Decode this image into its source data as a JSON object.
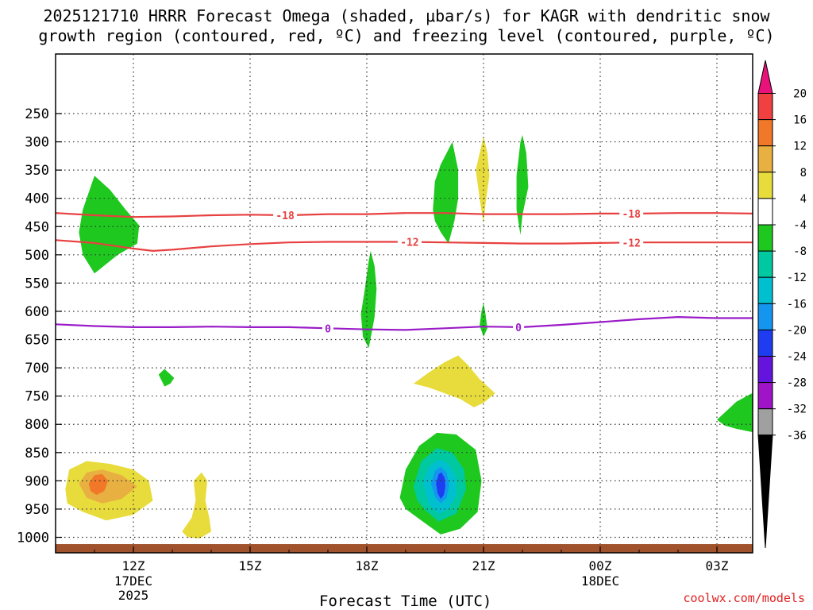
{
  "title": {
    "line1": "2025121710 HRRR Forecast Omega (shaded, μbar/s) for KAGR with dendritic snow",
    "line2": "growth region (contoured, red, ºC) and freezing level (contoured, purple, ºC)"
  },
  "credit": "coolwx.com/models",
  "chart_data": {
    "type": "heatmap",
    "title": "2025121710 HRRR Forecast Omega (shaded, μbar/s) for KAGR with dendritic snow growth region (contoured, red, ºC) and freezing level (contoured, purple, ºC)",
    "xlabel": "Forecast Time (UTC)",
    "ylabel": "",
    "x_unit": "hours since 2025-12-17 10Z",
    "xlim": [
      0.0,
      18.0
    ],
    "ylim": [
      1040,
      180
    ],
    "grid": true,
    "x_ticks": [
      {
        "x": 2,
        "label": "12Z",
        "sub1": "17DEC",
        "sub2": "2025"
      },
      {
        "x": 5,
        "label": "15Z",
        "sub1": "",
        "sub2": ""
      },
      {
        "x": 8,
        "label": "18Z",
        "sub1": "",
        "sub2": ""
      },
      {
        "x": 11,
        "label": "21Z",
        "sub1": "",
        "sub2": ""
      },
      {
        "x": 14,
        "label": "00Z",
        "sub1": "18DEC",
        "sub2": ""
      },
      {
        "x": 17,
        "label": "03Z",
        "sub1": "",
        "sub2": ""
      }
    ],
    "y_ticks": [
      250,
      300,
      350,
      400,
      450,
      500,
      550,
      600,
      650,
      700,
      750,
      800,
      850,
      900,
      950,
      1000
    ],
    "colorbar": {
      "labels": [
        "20",
        "16",
        "12",
        "8",
        "4",
        "-4",
        "-8",
        "-12",
        "-16",
        "-20",
        "-24",
        "-28",
        "-32",
        "-36"
      ],
      "bins": [
        {
          "lo": 20,
          "hi": null,
          "color": "#e8127a"
        },
        {
          "lo": 16,
          "hi": 20,
          "color": "#f04040"
        },
        {
          "lo": 12,
          "hi": 16,
          "color": "#f07828"
        },
        {
          "lo": 8,
          "hi": 12,
          "color": "#e8b040"
        },
        {
          "lo": 4,
          "hi": 8,
          "color": "#e8dc3c"
        },
        {
          "lo": -4,
          "hi": 4,
          "color": "#ffffff"
        },
        {
          "lo": -8,
          "hi": -4,
          "color": "#1ec81e"
        },
        {
          "lo": -12,
          "hi": -8,
          "color": "#00c8a0"
        },
        {
          "lo": -16,
          "hi": -12,
          "color": "#00c0d0"
        },
        {
          "lo": -20,
          "hi": -16,
          "color": "#1496f0"
        },
        {
          "lo": -24,
          "hi": -20,
          "color": "#1e3cf0"
        },
        {
          "lo": -28,
          "hi": -24,
          "color": "#6414dc"
        },
        {
          "lo": -32,
          "hi": -28,
          "color": "#a014c8"
        },
        {
          "lo": -36,
          "hi": -32,
          "color": "#a0a0a0"
        },
        {
          "lo": null,
          "hi": -36,
          "color": "#000000"
        }
      ]
    },
    "contours": [
      {
        "name": "-18",
        "color": "#e84040",
        "label": "-18",
        "label_x": [
          5.9,
          14.8
        ],
        "points": [
          [
            0,
            426
          ],
          [
            1,
            430
          ],
          [
            2,
            433
          ],
          [
            3,
            432
          ],
          [
            4,
            430
          ],
          [
            5,
            429
          ],
          [
            6,
            430
          ],
          [
            7,
            428
          ],
          [
            8,
            428
          ],
          [
            9,
            426
          ],
          [
            10,
            426
          ],
          [
            11,
            428
          ],
          [
            12,
            428
          ],
          [
            13,
            428
          ],
          [
            14,
            427
          ],
          [
            15,
            427
          ],
          [
            16,
            426
          ],
          [
            17,
            426
          ],
          [
            18,
            427
          ]
        ]
      },
      {
        "name": "-12",
        "color": "#e84040",
        "label": "-12",
        "label_x": [
          9.1,
          14.8
        ],
        "points": [
          [
            0,
            474
          ],
          [
            1,
            479
          ],
          [
            2,
            489
          ],
          [
            2.5,
            493
          ],
          [
            3,
            491
          ],
          [
            4,
            485
          ],
          [
            5,
            481
          ],
          [
            6,
            478
          ],
          [
            7,
            477
          ],
          [
            8,
            477
          ],
          [
            9,
            477
          ],
          [
            10,
            478
          ],
          [
            11,
            479
          ],
          [
            12,
            480
          ],
          [
            13,
            480
          ],
          [
            14,
            479
          ],
          [
            15,
            478
          ],
          [
            16,
            478
          ],
          [
            17,
            478
          ],
          [
            18,
            478
          ]
        ]
      },
      {
        "name": "0",
        "color": "#9a1bc8",
        "label": "0",
        "label_x": [
          7.0,
          11.9
        ],
        "points": [
          [
            0,
            623
          ],
          [
            1,
            626
          ],
          [
            2,
            628
          ],
          [
            3,
            628
          ],
          [
            4,
            627
          ],
          [
            5,
            628
          ],
          [
            6,
            628
          ],
          [
            7,
            630
          ],
          [
            8,
            632
          ],
          [
            9,
            633
          ],
          [
            10,
            630
          ],
          [
            11,
            627
          ],
          [
            12,
            628
          ],
          [
            13,
            624
          ],
          [
            14,
            619
          ],
          [
            15,
            614
          ],
          [
            15.5,
            612
          ],
          [
            16,
            610
          ],
          [
            17,
            612
          ],
          [
            18,
            612
          ]
        ]
      }
    ],
    "regions": [
      {
        "name": "green-1",
        "color": "#1ec81e",
        "points": [
          [
            1.0,
            360
          ],
          [
            1.4,
            385
          ],
          [
            1.8,
            420
          ],
          [
            2.15,
            448
          ],
          [
            2.1,
            480
          ],
          [
            1.6,
            500
          ],
          [
            1.0,
            533
          ],
          [
            0.7,
            500
          ],
          [
            0.6,
            460
          ],
          [
            0.7,
            420
          ],
          [
            0.9,
            380
          ]
        ]
      },
      {
        "name": "green-2",
        "color": "#1ec81e",
        "points": [
          [
            7.85,
            605
          ],
          [
            7.95,
            560
          ],
          [
            8.05,
            510
          ],
          [
            8.1,
            493
          ],
          [
            8.2,
            520
          ],
          [
            8.25,
            560
          ],
          [
            8.2,
            610
          ],
          [
            8.05,
            665
          ],
          [
            7.9,
            645
          ]
        ]
      },
      {
        "name": "green-3",
        "color": "#1ec81e",
        "points": [
          [
            9.7,
            420
          ],
          [
            9.75,
            370
          ],
          [
            9.9,
            340
          ],
          [
            10.2,
            300
          ],
          [
            10.35,
            350
          ],
          [
            10.35,
            400
          ],
          [
            10.25,
            440
          ],
          [
            10.1,
            480
          ],
          [
            9.9,
            460
          ],
          [
            9.75,
            440
          ]
        ]
      },
      {
        "name": "yellow-1",
        "color": "#e8dc3c",
        "points": [
          [
            10.8,
            350
          ],
          [
            10.9,
            320
          ],
          [
            11.0,
            290
          ],
          [
            11.1,
            320
          ],
          [
            11.15,
            360
          ],
          [
            11.05,
            410
          ],
          [
            11.0,
            445
          ],
          [
            10.9,
            400
          ]
        ]
      },
      {
        "name": "green-4",
        "color": "#1ec81e",
        "points": [
          [
            11.85,
            360
          ],
          [
            11.95,
            300
          ],
          [
            12.0,
            288
          ],
          [
            12.1,
            320
          ],
          [
            12.15,
            380
          ],
          [
            12.0,
            430
          ],
          [
            11.95,
            465
          ],
          [
            11.85,
            420
          ]
        ]
      },
      {
        "name": "green-5",
        "color": "#1ec81e",
        "points": [
          [
            10.9,
            625
          ],
          [
            10.95,
            600
          ],
          [
            11.0,
            585
          ],
          [
            11.05,
            605
          ],
          [
            11.1,
            630
          ],
          [
            11.0,
            645
          ]
        ]
      },
      {
        "name": "green-6",
        "color": "#1ec81e",
        "points": [
          [
            2.65,
            712
          ],
          [
            2.8,
            702
          ],
          [
            3.05,
            718
          ],
          [
            2.95,
            728
          ],
          [
            2.8,
            733
          ]
        ]
      },
      {
        "name": "yellow-2",
        "color": "#e8dc3c",
        "points": [
          [
            9.2,
            728
          ],
          [
            9.6,
            708
          ],
          [
            10.0,
            690
          ],
          [
            10.35,
            678
          ],
          [
            10.6,
            695
          ],
          [
            10.9,
            720
          ],
          [
            11.3,
            745
          ],
          [
            11.0,
            762
          ],
          [
            10.75,
            770
          ],
          [
            10.4,
            755
          ],
          [
            10.0,
            745
          ],
          [
            9.6,
            735
          ]
        ]
      },
      {
        "name": "green-7",
        "color": "#1ec81e",
        "points": [
          [
            17.0,
            792
          ],
          [
            17.5,
            760
          ],
          [
            17.9,
            745
          ],
          [
            18.0,
            745
          ],
          [
            18.0,
            815
          ],
          [
            17.5,
            808
          ],
          [
            17.2,
            802
          ]
        ]
      },
      {
        "name": "yellow-3",
        "color": "#e8dc3c",
        "points": [
          [
            0.25,
            915
          ],
          [
            0.35,
            880
          ],
          [
            0.8,
            865
          ],
          [
            1.4,
            870
          ],
          [
            2.0,
            880
          ],
          [
            2.4,
            900
          ],
          [
            2.5,
            935
          ],
          [
            2.0,
            960
          ],
          [
            1.3,
            970
          ],
          [
            0.7,
            955
          ],
          [
            0.3,
            940
          ]
        ]
      },
      {
        "name": "gold-1",
        "color": "#e8b040",
        "points": [
          [
            0.6,
            905
          ],
          [
            0.8,
            885
          ],
          [
            1.2,
            880
          ],
          [
            1.7,
            890
          ],
          [
            2.1,
            910
          ],
          [
            1.7,
            932
          ],
          [
            1.2,
            940
          ],
          [
            0.8,
            930
          ]
        ]
      },
      {
        "name": "orange-1",
        "color": "#f07828",
        "points": [
          [
            0.85,
            905
          ],
          [
            1.0,
            890
          ],
          [
            1.2,
            888
          ],
          [
            1.35,
            900
          ],
          [
            1.25,
            918
          ],
          [
            1.05,
            925
          ],
          [
            0.9,
            918
          ]
        ]
      },
      {
        "name": "yellow-4",
        "color": "#e8dc3c",
        "points": [
          [
            3.25,
            990
          ],
          [
            3.5,
            965
          ],
          [
            3.6,
            935
          ],
          [
            3.55,
            900
          ],
          [
            3.75,
            885
          ],
          [
            3.9,
            900
          ],
          [
            3.85,
            935
          ],
          [
            3.95,
            965
          ],
          [
            4.0,
            990
          ],
          [
            3.7,
            1002
          ],
          [
            3.4,
            1000
          ]
        ]
      },
      {
        "name": "green-8",
        "color": "#1ec81e",
        "points": [
          [
            8.85,
            930
          ],
          [
            9.0,
            880
          ],
          [
            9.35,
            838
          ],
          [
            9.8,
            815
          ],
          [
            10.3,
            818
          ],
          [
            10.8,
            845
          ],
          [
            10.95,
            900
          ],
          [
            10.85,
            955
          ],
          [
            10.4,
            985
          ],
          [
            9.9,
            995
          ],
          [
            9.4,
            970
          ],
          [
            9.0,
            950
          ]
        ]
      },
      {
        "name": "teal-1",
        "color": "#00c8a0",
        "points": [
          [
            9.2,
            910
          ],
          [
            9.4,
            865
          ],
          [
            9.8,
            842
          ],
          [
            10.2,
            850
          ],
          [
            10.5,
            880
          ],
          [
            10.55,
            915
          ],
          [
            10.3,
            958
          ],
          [
            9.85,
            972
          ],
          [
            9.5,
            952
          ],
          [
            9.3,
            935
          ]
        ]
      },
      {
        "name": "cyan-1",
        "color": "#00c0d0",
        "points": [
          [
            9.45,
            905
          ],
          [
            9.6,
            875
          ],
          [
            9.85,
            862
          ],
          [
            10.1,
            870
          ],
          [
            10.3,
            895
          ],
          [
            10.3,
            925
          ],
          [
            10.1,
            950
          ],
          [
            9.85,
            958
          ],
          [
            9.6,
            942
          ]
        ]
      },
      {
        "name": "lightblue-1",
        "color": "#1496f0",
        "points": [
          [
            9.65,
            905
          ],
          [
            9.75,
            882
          ],
          [
            9.9,
            875
          ],
          [
            10.05,
            885
          ],
          [
            10.12,
            908
          ],
          [
            10.05,
            930
          ],
          [
            9.9,
            940
          ],
          [
            9.75,
            928
          ]
        ]
      },
      {
        "name": "blue-1",
        "color": "#1e3cf0",
        "points": [
          [
            9.78,
            905
          ],
          [
            9.85,
            888
          ],
          [
            9.92,
            885
          ],
          [
            10.0,
            895
          ],
          [
            10.02,
            910
          ],
          [
            9.98,
            925
          ],
          [
            9.9,
            932
          ],
          [
            9.82,
            922
          ]
        ]
      }
    ],
    "terrain": {
      "color": "#a0522d",
      "top_pressure": 1012
    }
  }
}
